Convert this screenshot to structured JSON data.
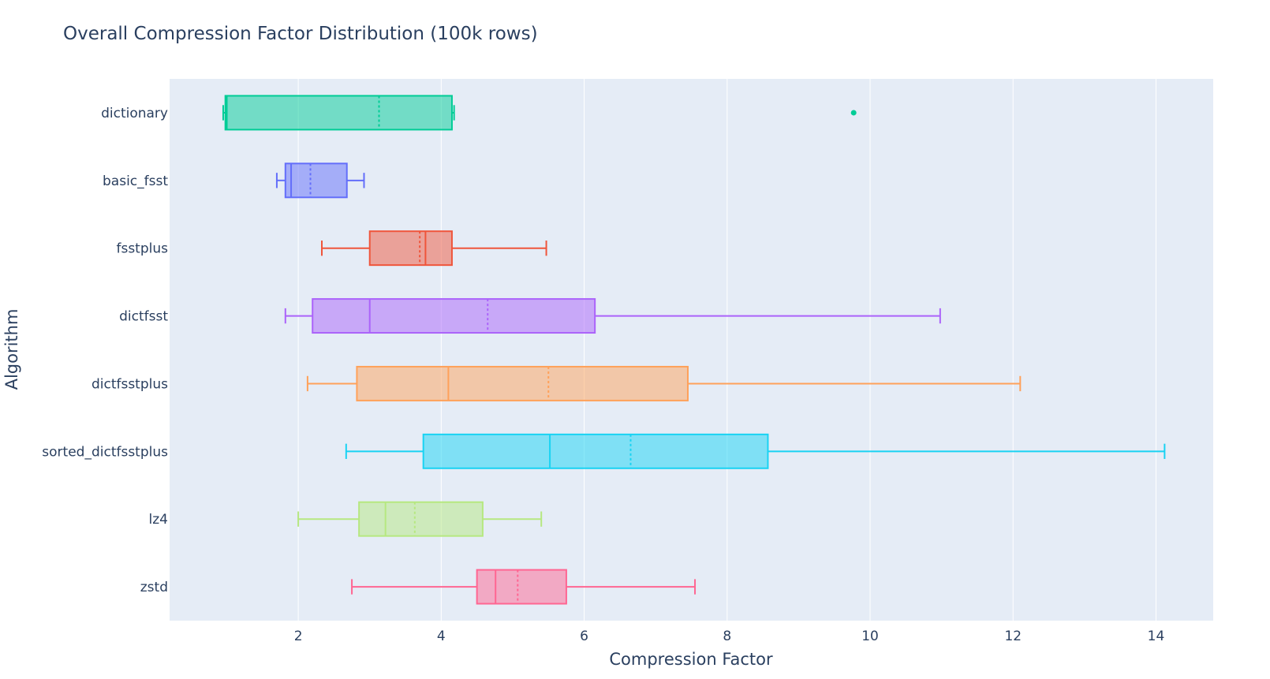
{
  "chart_data": {
    "type": "box",
    "orientation": "horizontal",
    "title": "Overall Compression Factor Distribution (100k rows)",
    "xlabel": "Compression Factor",
    "ylabel": "Algorithm",
    "xlim": [
      0.2,
      14.8
    ],
    "xticks": [
      2,
      4,
      6,
      8,
      10,
      12,
      14
    ],
    "grid": true,
    "legend": "none",
    "plot_bg": "#e5ecf6",
    "series": [
      {
        "name": "dictionary",
        "color": "#00cc96",
        "min": 0.95,
        "q1": 0.98,
        "median": 1.0,
        "q3": 4.15,
        "max": 4.18,
        "mean": 3.13,
        "outliers": [
          9.77
        ]
      },
      {
        "name": "basic_fsst",
        "color": "#636efa",
        "min": 1.7,
        "q1": 1.82,
        "median": 1.9,
        "q3": 2.68,
        "max": 2.92,
        "mean": 2.17,
        "outliers": []
      },
      {
        "name": "fsstplus",
        "color": "#ef553b",
        "min": 2.33,
        "q1": 3.0,
        "median": 3.78,
        "q3": 4.15,
        "max": 5.47,
        "mean": 3.7,
        "outliers": []
      },
      {
        "name": "dictfsst",
        "color": "#ab63fa",
        "min": 1.82,
        "q1": 2.2,
        "median": 3.0,
        "q3": 6.15,
        "max": 10.98,
        "mean": 4.65,
        "outliers": []
      },
      {
        "name": "dictfsstplus",
        "color": "#ffa15a",
        "min": 2.13,
        "q1": 2.82,
        "median": 4.1,
        "q3": 7.45,
        "max": 12.1,
        "mean": 5.5,
        "outliers": []
      },
      {
        "name": "sorted_dictfsstplus",
        "color": "#19d3f3",
        "min": 2.67,
        "q1": 3.75,
        "median": 5.52,
        "q3": 8.57,
        "max": 14.12,
        "mean": 6.65,
        "outliers": []
      },
      {
        "name": "lz4",
        "color": "#b6e880",
        "min": 2.0,
        "q1": 2.85,
        "median": 3.22,
        "q3": 4.58,
        "max": 5.4,
        "mean": 3.63,
        "outliers": []
      },
      {
        "name": "zstd",
        "color": "#ff6692",
        "min": 2.75,
        "q1": 4.5,
        "median": 4.76,
        "q3": 5.75,
        "max": 7.55,
        "mean": 5.07,
        "outliers": []
      }
    ]
  }
}
